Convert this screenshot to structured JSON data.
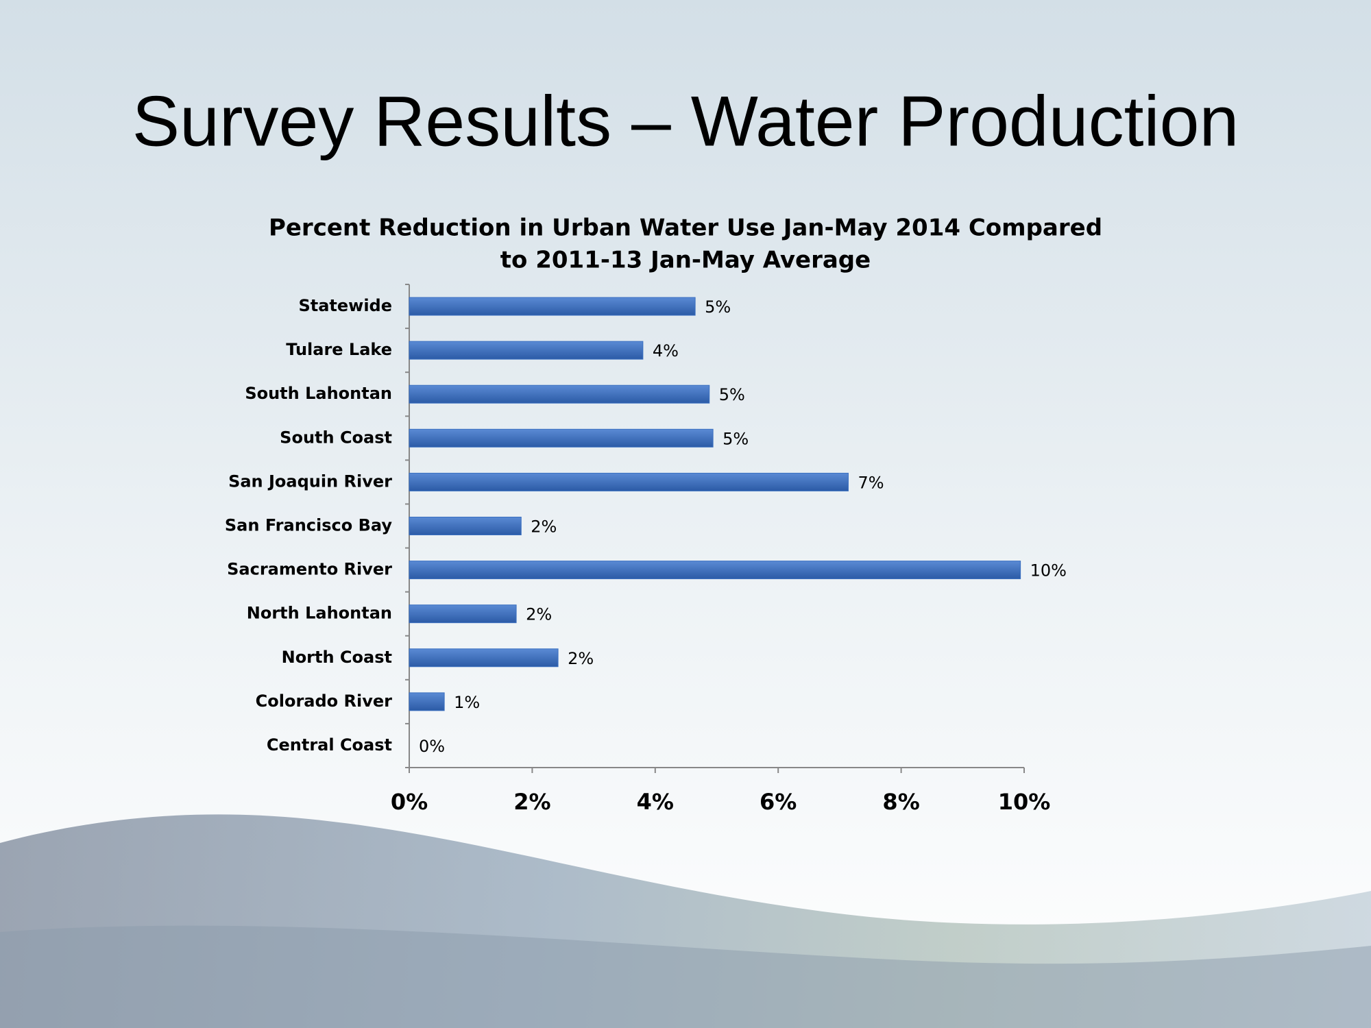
{
  "slide": {
    "title": "Survey Results – Water Production"
  },
  "chart_data": {
    "type": "bar",
    "orientation": "horizontal",
    "title": [
      "Percent Reduction in Urban Water Use Jan-May 2014 Compared",
      "to 2011-13 Jan-May Average"
    ],
    "categories": [
      "Statewide",
      "Tulare Lake",
      "South Lahontan",
      "South Coast",
      "San Joaquin River",
      "San Francisco Bay",
      "Sacramento River",
      "North Lahontan",
      "North Coast",
      "Colorado River",
      "Central Coast"
    ],
    "values": [
      4.65,
      3.8,
      4.88,
      4.94,
      7.14,
      1.82,
      9.94,
      1.74,
      2.42,
      0.57,
      0
    ],
    "value_labels": [
      "5%",
      "4%",
      "5%",
      "5%",
      "7%",
      "2%",
      "10%",
      "2%",
      "2%",
      "1%",
      "0%"
    ],
    "color": "#3a6fc0",
    "xlim": [
      0,
      10
    ],
    "xticks": [
      {
        "value": 0,
        "label": "0%"
      },
      {
        "value": 2,
        "label": "2%"
      },
      {
        "value": 4,
        "label": "4%"
      },
      {
        "value": 6,
        "label": "6%"
      },
      {
        "value": 8,
        "label": "8%"
      },
      {
        "value": 10,
        "label": "10%"
      }
    ],
    "grid": false
  }
}
